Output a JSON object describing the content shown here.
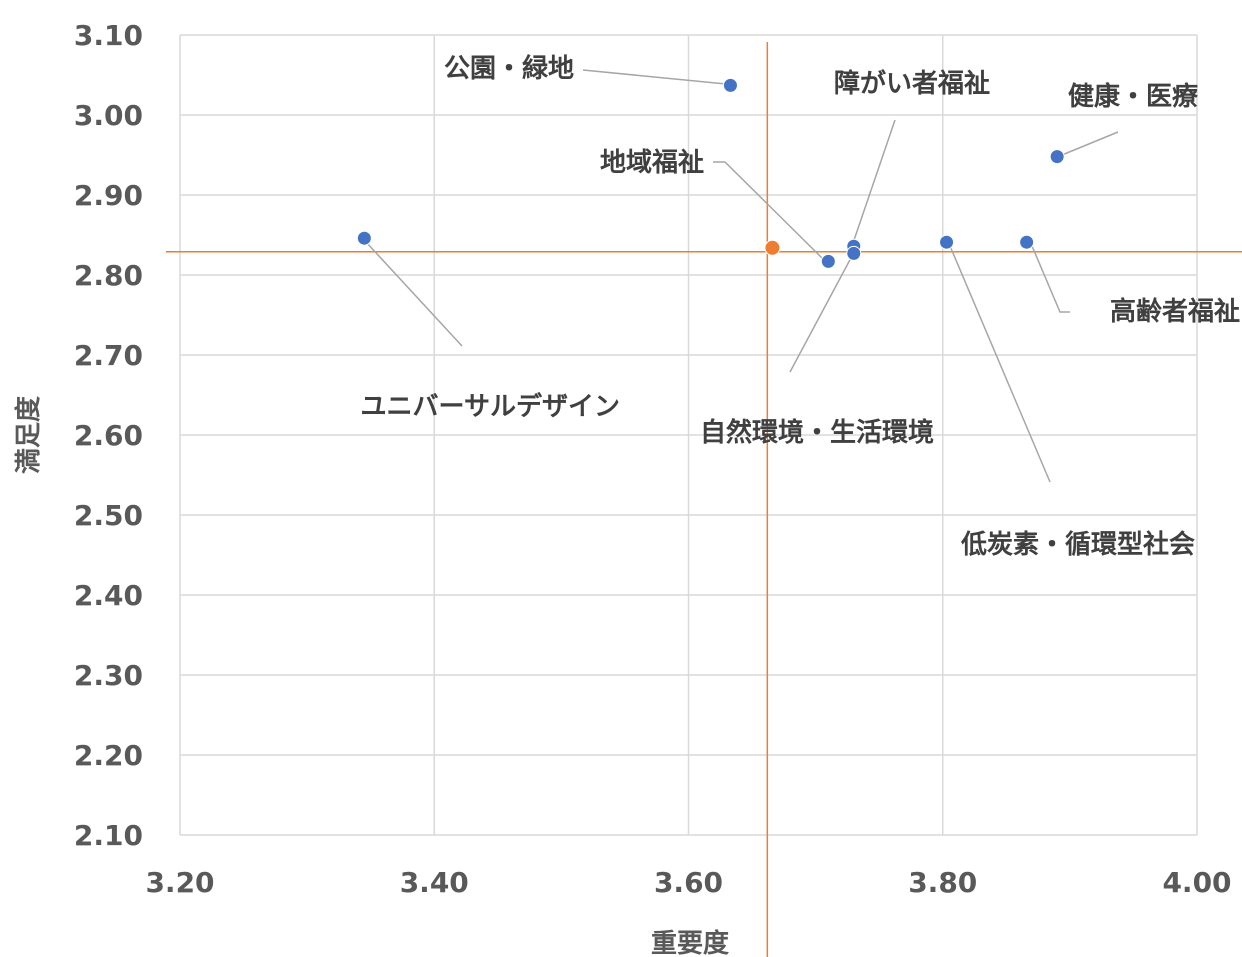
{
  "chart_data": {
    "type": "scatter",
    "xlabel": "重要度",
    "ylabel": "満足度",
    "xlim": [
      3.2,
      4.0
    ],
    "ylim": [
      2.1,
      3.1
    ],
    "x_ticks": [
      "3.20",
      "3.40",
      "3.60",
      "3.80",
      "4.00"
    ],
    "y_ticks": [
      "3.10",
      "3.00",
      "2.90",
      "2.80",
      "2.70",
      "2.60",
      "2.50",
      "2.40",
      "2.30",
      "2.20",
      "2.10"
    ],
    "grid": true,
    "points": [
      {
        "name": "公園・緑地",
        "x": 3.633,
        "y": 3.037
      },
      {
        "name": "健康・医療",
        "x": 3.89,
        "y": 2.948
      },
      {
        "name": "ユニバーサルデザイン",
        "x": 3.345,
        "y": 2.846
      },
      {
        "name": "地域福祉",
        "x": 3.71,
        "y": 2.817
      },
      {
        "name": "障がい者福祉",
        "x": 3.73,
        "y": 2.836
      },
      {
        "name": "自然環境・生活環境",
        "x": 3.73,
        "y": 2.827
      },
      {
        "name": "低炭素・循環型社会",
        "x": 3.803,
        "y": 2.841
      },
      {
        "name": "高齢者福祉",
        "x": 3.866,
        "y": 2.841
      }
    ],
    "average_point": {
      "x": 3.666,
      "y": 2.834
    },
    "reference_lines": {
      "x": 3.662,
      "y": 2.829
    },
    "colors": {
      "points": "#4472c4",
      "average": "#ed7d31",
      "reference": "#ed7d31",
      "grid": "#d9d9d9",
      "leader": "#a6a6a6"
    }
  }
}
